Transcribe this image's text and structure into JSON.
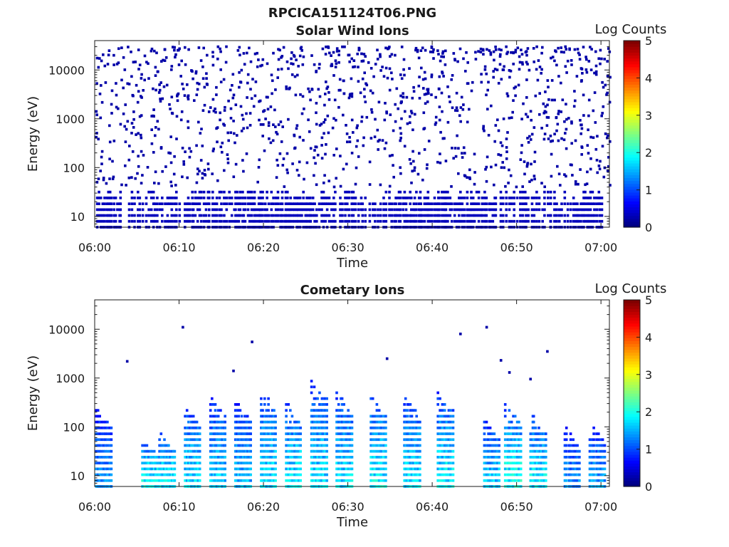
{
  "figure": {
    "title": "RPCICA151124T06.PNG"
  },
  "colorbar": {
    "label": "Log Counts",
    "ticks": [
      "0",
      "1",
      "2",
      "3",
      "4",
      "5"
    ],
    "range": [
      0,
      5
    ],
    "colormap": "jet"
  },
  "chart_data": [
    {
      "type": "heatmap",
      "title": "Solar Wind Ions",
      "xlabel": "Time",
      "ylabel": "Energy (eV)",
      "x_ticks": [
        "06:00",
        "06:10",
        "06:20",
        "06:30",
        "06:40",
        "06:50",
        "07:00"
      ],
      "x_range": [
        "06:00",
        "07:01"
      ],
      "y_scale": "log",
      "y_ticks": [
        "10",
        "100",
        "1000",
        "10000"
      ],
      "y_range": [
        6,
        40000
      ],
      "color_range": [
        0,
        5
      ],
      "low_energy_bursts_min": [
        1.5,
        5.5,
        8.5,
        12.0,
        15.0,
        18.0,
        21.0,
        24.0,
        27.0,
        30.5,
        34.0,
        37.0,
        40.0,
        43.0,
        46.0,
        49.5,
        52.5,
        55.5,
        58.5
      ],
      "burst_energy_range_eV": [
        6,
        40
      ],
      "burst_log_counts": 0.3,
      "scatter_energy_range_eV": [
        40,
        30000
      ],
      "scatter_log_counts": 0.2
    },
    {
      "type": "heatmap",
      "title": "Cometary Ions",
      "xlabel": "Time",
      "ylabel": "Energy (eV)",
      "x_ticks": [
        "06:00",
        "06:10",
        "06:20",
        "06:30",
        "06:40",
        "06:50",
        "07:00"
      ],
      "x_range": [
        "06:00",
        "07:01"
      ],
      "y_scale": "log",
      "y_ticks": [
        "10",
        "100",
        "1000",
        "10000"
      ],
      "y_range": [
        6,
        40000
      ],
      "color_range": [
        0,
        5
      ],
      "bursts": [
        {
          "t_min": 1.0,
          "emax_eV": 280,
          "peak_log_counts": 1.3
        },
        {
          "t_min": 6.5,
          "emax_eV": 60,
          "peak_log_counts": 1.9
        },
        {
          "t_min": 8.5,
          "emax_eV": 80,
          "peak_log_counts": 1.8
        },
        {
          "t_min": 11.5,
          "emax_eV": 300,
          "peak_log_counts": 1.7
        },
        {
          "t_min": 14.5,
          "emax_eV": 400,
          "peak_log_counts": 1.6
        },
        {
          "t_min": 17.5,
          "emax_eV": 350,
          "peak_log_counts": 1.5
        },
        {
          "t_min": 20.5,
          "emax_eV": 550,
          "peak_log_counts": 1.7
        },
        {
          "t_min": 23.5,
          "emax_eV": 300,
          "peak_log_counts": 1.8
        },
        {
          "t_min": 26.5,
          "emax_eV": 900,
          "peak_log_counts": 1.7
        },
        {
          "t_min": 29.5,
          "emax_eV": 550,
          "peak_log_counts": 1.7
        },
        {
          "t_min": 33.5,
          "emax_eV": 500,
          "peak_log_counts": 1.8
        },
        {
          "t_min": 37.5,
          "emax_eV": 450,
          "peak_log_counts": 1.7
        },
        {
          "t_min": 41.5,
          "emax_eV": 500,
          "peak_log_counts": 1.8
        },
        {
          "t_min": 47.0,
          "emax_eV": 150,
          "peak_log_counts": 1.6
        },
        {
          "t_min": 49.5,
          "emax_eV": 300,
          "peak_log_counts": 1.9
        },
        {
          "t_min": 52.5,
          "emax_eV": 200,
          "peak_log_counts": 1.8
        },
        {
          "t_min": 56.5,
          "emax_eV": 100,
          "peak_log_counts": 1.3
        },
        {
          "t_min": 59.5,
          "emax_eV": 120,
          "peak_log_counts": 1.4
        }
      ],
      "sparse_points": [
        {
          "t_min": 3.7,
          "energy_eV": 2200
        },
        {
          "t_min": 10.3,
          "energy_eV": 11000
        },
        {
          "t_min": 16.3,
          "energy_eV": 1400
        },
        {
          "t_min": 18.5,
          "energy_eV": 5500
        },
        {
          "t_min": 34.5,
          "energy_eV": 2500
        },
        {
          "t_min": 43.2,
          "energy_eV": 8000
        },
        {
          "t_min": 46.3,
          "energy_eV": 11000
        },
        {
          "t_min": 48.0,
          "energy_eV": 2300
        },
        {
          "t_min": 49.0,
          "energy_eV": 1300
        },
        {
          "t_min": 51.5,
          "energy_eV": 950
        },
        {
          "t_min": 53.5,
          "energy_eV": 3500
        }
      ]
    }
  ]
}
